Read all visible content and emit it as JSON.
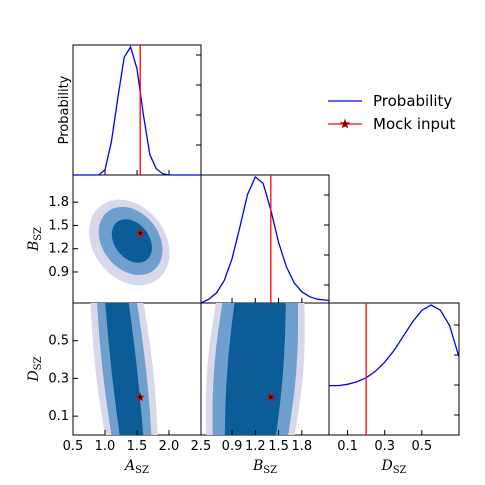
{
  "chart_data": {
    "type": "corner",
    "parameters": [
      "A_SZ",
      "B_SZ",
      "D_SZ"
    ],
    "axis_labels": {
      "A_SZ": {
        "main": "A",
        "sub": "SZ"
      },
      "B_SZ": {
        "main": "B",
        "sub": "SZ"
      },
      "D_SZ": {
        "main": "D",
        "sub": "SZ"
      }
    },
    "ranges": {
      "A_SZ": [
        0.5,
        2.5
      ],
      "B_SZ": [
        0.5,
        2.15
      ],
      "D_SZ": [
        0.0,
        0.7
      ]
    },
    "ticks": {
      "A_SZ": [
        "0.5",
        "1.0",
        "1.5",
        "2.0",
        "2.5"
      ],
      "B_SZ": [
        "0.9",
        "1.2",
        "1.5",
        "1.8"
      ],
      "D_SZ": [
        "0.1",
        "0.3",
        "0.5"
      ]
    },
    "mock_input": {
      "A_SZ": 1.55,
      "B_SZ": 1.4,
      "D_SZ": 0.2
    },
    "marginals": [
      {
        "param": "A_SZ",
        "ylabel": "Probability",
        "x": [
          0.5,
          0.9,
          1.0,
          1.1,
          1.2,
          1.3,
          1.4,
          1.5,
          1.6,
          1.7,
          1.8,
          1.9,
          2.0,
          2.5
        ],
        "y": [
          0.0,
          0.0,
          0.04,
          0.26,
          0.6,
          0.92,
          1.0,
          0.83,
          0.47,
          0.16,
          0.05,
          0.01,
          0.0,
          0.0
        ]
      },
      {
        "param": "B_SZ",
        "x": [
          0.5,
          0.6,
          0.7,
          0.8,
          0.9,
          1.0,
          1.1,
          1.2,
          1.3,
          1.4,
          1.5,
          1.6,
          1.7,
          1.8,
          1.9,
          2.0,
          2.15
        ],
        "y": [
          0.0,
          0.03,
          0.08,
          0.18,
          0.35,
          0.6,
          0.86,
          1.0,
          0.95,
          0.74,
          0.48,
          0.29,
          0.16,
          0.09,
          0.05,
          0.03,
          0.02
        ]
      },
      {
        "param": "D_SZ",
        "x": [
          0.0,
          0.05,
          0.1,
          0.15,
          0.2,
          0.25,
          0.3,
          0.35,
          0.4,
          0.45,
          0.5,
          0.55,
          0.6,
          0.65,
          0.7
        ],
        "y": [
          0.38,
          0.38,
          0.39,
          0.41,
          0.44,
          0.49,
          0.56,
          0.65,
          0.76,
          0.87,
          0.96,
          1.0,
          0.96,
          0.84,
          0.6
        ]
      }
    ],
    "contours_2d": [
      {
        "x": "A_SZ",
        "y": "B_SZ",
        "levels": [
          {
            "cx": 1.38,
            "cy": 1.28,
            "rx": 0.56,
            "ry": 0.6
          },
          {
            "cx": 1.4,
            "cy": 1.3,
            "rx": 0.44,
            "ry": 0.48
          },
          {
            "cx": 1.42,
            "cy": 1.3,
            "rx": 0.27,
            "ry": 0.31
          }
        ]
      },
      {
        "x": "A_SZ",
        "y": "D_SZ",
        "tilt": -0.45,
        "levels": [
          {
            "center": 1.3,
            "halfwidth": 0.45
          },
          {
            "center": 1.3,
            "halfwidth": 0.34
          },
          {
            "center": 1.3,
            "halfwidth": 0.2
          }
        ]
      },
      {
        "x": "B_SZ",
        "y": "D_SZ",
        "tilt": 0.25,
        "levels": [
          {
            "center": 1.2,
            "halfwidth": 0.62
          },
          {
            "center": 1.2,
            "halfwidth": 0.53
          },
          {
            "center": 1.2,
            "halfwidth": 0.36
          }
        ]
      }
    ],
    "contour_colors": [
      "#d7d8ea",
      "#6f9fcc",
      "#0a5d96"
    ],
    "line_color": "#0000ff",
    "mock_color": "#ff0000",
    "legend": [
      {
        "label": "Probability",
        "color": "#0000ff",
        "marker": "line"
      },
      {
        "label": "Mock input",
        "color": "#ff0000",
        "marker": "line-star"
      }
    ],
    "legend_placement": "upper-right"
  }
}
